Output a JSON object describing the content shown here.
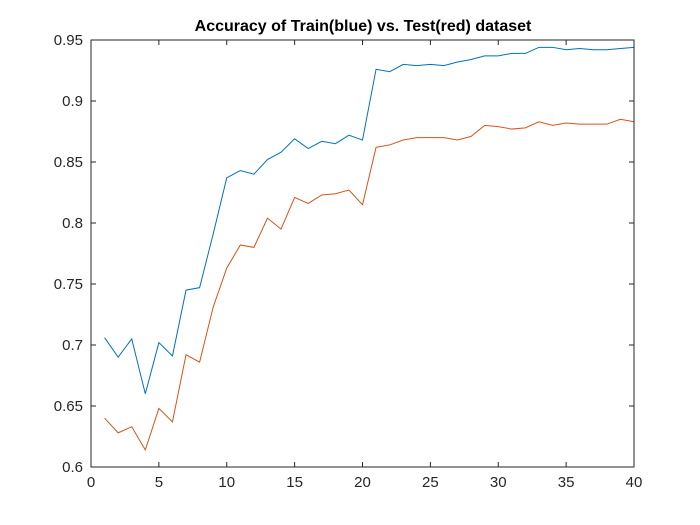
{
  "chart_data": {
    "type": "line",
    "title": "Accuracy of Train(blue) vs. Test(red) dataset",
    "xlabel": "",
    "ylabel": "",
    "xlim": [
      0,
      40
    ],
    "ylim": [
      0.6,
      0.95
    ],
    "xticks": [
      0,
      5,
      10,
      15,
      20,
      25,
      30,
      35,
      40
    ],
    "yticks": [
      0.6,
      0.65,
      0.7,
      0.75,
      0.8,
      0.85,
      0.9,
      0.95
    ],
    "ytick_labels": [
      "0.6",
      "0.65",
      "0.7",
      "0.75",
      "0.8",
      "0.85",
      "0.9",
      "0.95"
    ],
    "grid": false,
    "legend": "none",
    "x": [
      1,
      2,
      3,
      4,
      5,
      6,
      7,
      8,
      9,
      10,
      11,
      12,
      13,
      14,
      15,
      16,
      17,
      18,
      19,
      20,
      21,
      22,
      23,
      24,
      25,
      26,
      27,
      28,
      29,
      30,
      31,
      32,
      33,
      34,
      35,
      36,
      37,
      38,
      39,
      40
    ],
    "series": [
      {
        "color": "#0072BD",
        "values": [
          0.706,
          0.69,
          0.705,
          0.66,
          0.702,
          0.691,
          0.745,
          0.747,
          0.791,
          0.837,
          0.843,
          0.84,
          0.852,
          0.858,
          0.869,
          0.861,
          0.867,
          0.865,
          0.872,
          0.868,
          0.926,
          0.924,
          0.93,
          0.929,
          0.93,
          0.929,
          0.932,
          0.934,
          0.937,
          0.937,
          0.939,
          0.939,
          0.944,
          0.944,
          0.942,
          0.943,
          0.942,
          0.942,
          0.943,
          0.944
        ]
      },
      {
        "color": "#D95319",
        "values": [
          0.64,
          0.628,
          0.633,
          0.614,
          0.648,
          0.637,
          0.692,
          0.686,
          0.731,
          0.763,
          0.782,
          0.78,
          0.804,
          0.795,
          0.821,
          0.816,
          0.823,
          0.824,
          0.827,
          0.815,
          0.862,
          0.864,
          0.868,
          0.87,
          0.87,
          0.87,
          0.868,
          0.871,
          0.88,
          0.879,
          0.877,
          0.878,
          0.883,
          0.88,
          0.882,
          0.881,
          0.881,
          0.881,
          0.885,
          0.883
        ]
      }
    ]
  }
}
